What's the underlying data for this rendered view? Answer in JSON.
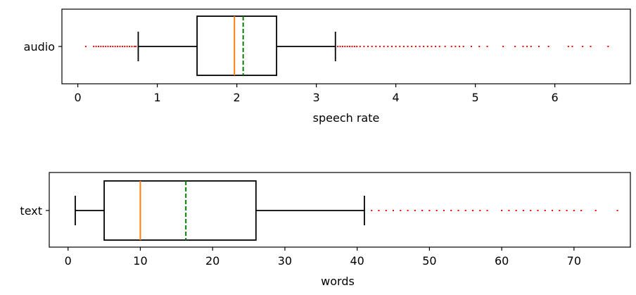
{
  "chart_data": [
    {
      "type": "boxplot",
      "orientation": "horizontal",
      "category": "audio",
      "xlabel": "speech rate",
      "xlim": [
        -0.2,
        6.95
      ],
      "xticks": [
        0,
        1,
        2,
        3,
        4,
        5,
        6
      ],
      "box": {
        "whisker_low": 0.76,
        "q1": 1.5,
        "median": 1.97,
        "mean": 2.08,
        "q3": 2.5,
        "whisker_high": 3.24
      },
      "outliers": [
        0.1,
        0.2,
        0.23,
        0.26,
        0.29,
        0.32,
        0.35,
        0.38,
        0.41,
        0.44,
        0.47,
        0.5,
        0.53,
        0.56,
        0.59,
        0.62,
        0.65,
        0.68,
        0.71,
        0.73,
        3.27,
        3.3,
        3.33,
        3.36,
        3.39,
        3.42,
        3.45,
        3.48,
        3.51,
        3.55,
        3.6,
        3.65,
        3.7,
        3.75,
        3.8,
        3.85,
        3.9,
        3.95,
        4.0,
        4.05,
        4.1,
        4.15,
        4.2,
        4.25,
        4.3,
        4.35,
        4.4,
        4.45,
        4.5,
        4.55,
        4.62,
        4.7,
        4.75,
        4.8,
        4.85,
        4.95,
        5.05,
        5.15,
        5.35,
        5.5,
        5.6,
        5.65,
        5.7,
        5.8,
        5.92,
        6.17,
        6.22,
        6.35,
        6.45,
        6.67
      ],
      "colors": {
        "box": "#000000",
        "median": "#ff7f0e",
        "mean": "#008000",
        "outliers": "#ff0000"
      }
    },
    {
      "type": "boxplot",
      "orientation": "horizontal",
      "category": "text",
      "xlabel": "words",
      "xlim": [
        -2.6,
        77.8
      ],
      "xticks": [
        0,
        10,
        20,
        30,
        40,
        50,
        60,
        70
      ],
      "box": {
        "whisker_low": 1,
        "q1": 5,
        "median": 10,
        "mean": 16.3,
        "q3": 26,
        "whisker_high": 41
      },
      "outliers": [
        42,
        43,
        44,
        45,
        46,
        47,
        48,
        49,
        50,
        51,
        52,
        53,
        54,
        55,
        56,
        57,
        58,
        60,
        61,
        62,
        63,
        64,
        65,
        66,
        67,
        68,
        69,
        70,
        71,
        73,
        76
      ],
      "colors": {
        "box": "#000000",
        "median": "#ff7f0e",
        "mean": "#008000",
        "outliers": "#ff0000"
      }
    }
  ]
}
